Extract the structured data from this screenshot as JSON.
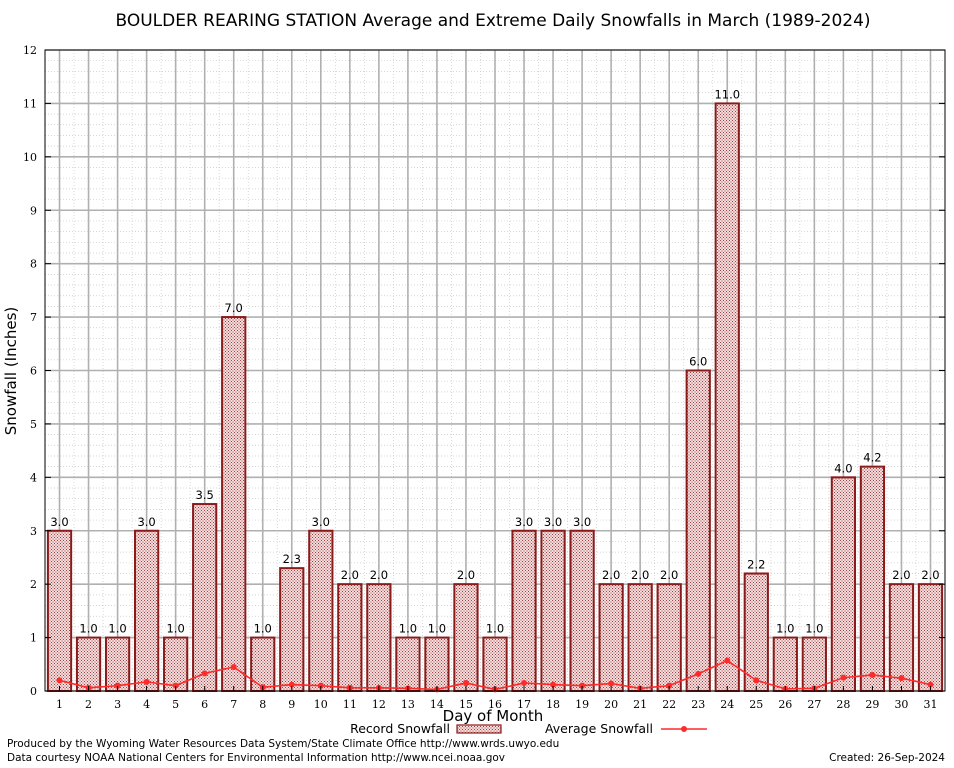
{
  "chart_data": {
    "type": "bar",
    "title": "BOULDER REARING STATION Average and Extreme Daily Snowfalls in March (1989-2024)",
    "xlabel": "Day of Month",
    "ylabel": "Snowfall (Inches)",
    "ylim": [
      0,
      12
    ],
    "yticks": [
      0,
      1,
      2,
      3,
      4,
      5,
      6,
      7,
      8,
      9,
      10,
      11,
      12
    ],
    "grid": true,
    "categories": [
      "1",
      "2",
      "3",
      "4",
      "5",
      "6",
      "7",
      "8",
      "9",
      "10",
      "11",
      "12",
      "13",
      "14",
      "15",
      "16",
      "17",
      "18",
      "19",
      "20",
      "21",
      "22",
      "23",
      "24",
      "25",
      "26",
      "27",
      "28",
      "29",
      "30",
      "31"
    ],
    "series": [
      {
        "name": "Record Snowfall",
        "kind": "bar",
        "color": "#8b1a1a",
        "values": [
          3.0,
          1.0,
          1.0,
          3.0,
          1.0,
          3.5,
          7.0,
          1.0,
          2.3,
          3.0,
          2.0,
          2.0,
          1.0,
          1.0,
          2.0,
          1.0,
          3.0,
          3.0,
          3.0,
          2.0,
          2.0,
          2.0,
          6.0,
          11.0,
          2.2,
          1.0,
          1.0,
          4.0,
          4.2,
          2.0,
          2.0
        ],
        "labels": [
          "3.0",
          "1.0",
          "1.0",
          "3.0",
          "1.0",
          "3.5",
          "7.0",
          "1.0",
          "2.3",
          "3.0",
          "2.0",
          "2.0",
          "1.0",
          "1.0",
          "2.0",
          "1.0",
          "3.0",
          "3.0",
          "3.0",
          "2.0",
          "2.0",
          "2.0",
          "6.0",
          "11.0",
          "2.2",
          "1.0",
          "1.0",
          "4.0",
          "4.2",
          "2.0",
          "2.0"
        ]
      },
      {
        "name": "Average Snowfall",
        "kind": "line",
        "color": "#ff2a2a",
        "values": [
          0.2,
          0.06,
          0.1,
          0.17,
          0.1,
          0.33,
          0.45,
          0.07,
          0.12,
          0.1,
          0.06,
          0.06,
          0.05,
          0.03,
          0.15,
          0.03,
          0.15,
          0.12,
          0.1,
          0.14,
          0.05,
          0.1,
          0.32,
          0.57,
          0.2,
          0.04,
          0.05,
          0.25,
          0.3,
          0.24,
          0.12
        ]
      }
    ]
  },
  "footer": {
    "produced_by": "Produced by the Wyoming Water Resources Data System/State Climate Office http://www.wrds.uwyo.edu",
    "data_courtesy": "Data courtesy NOAA National Centers for Environmental Information http://www.ncei.noaa.gov",
    "created": "Created:  26-Sep-2024"
  }
}
